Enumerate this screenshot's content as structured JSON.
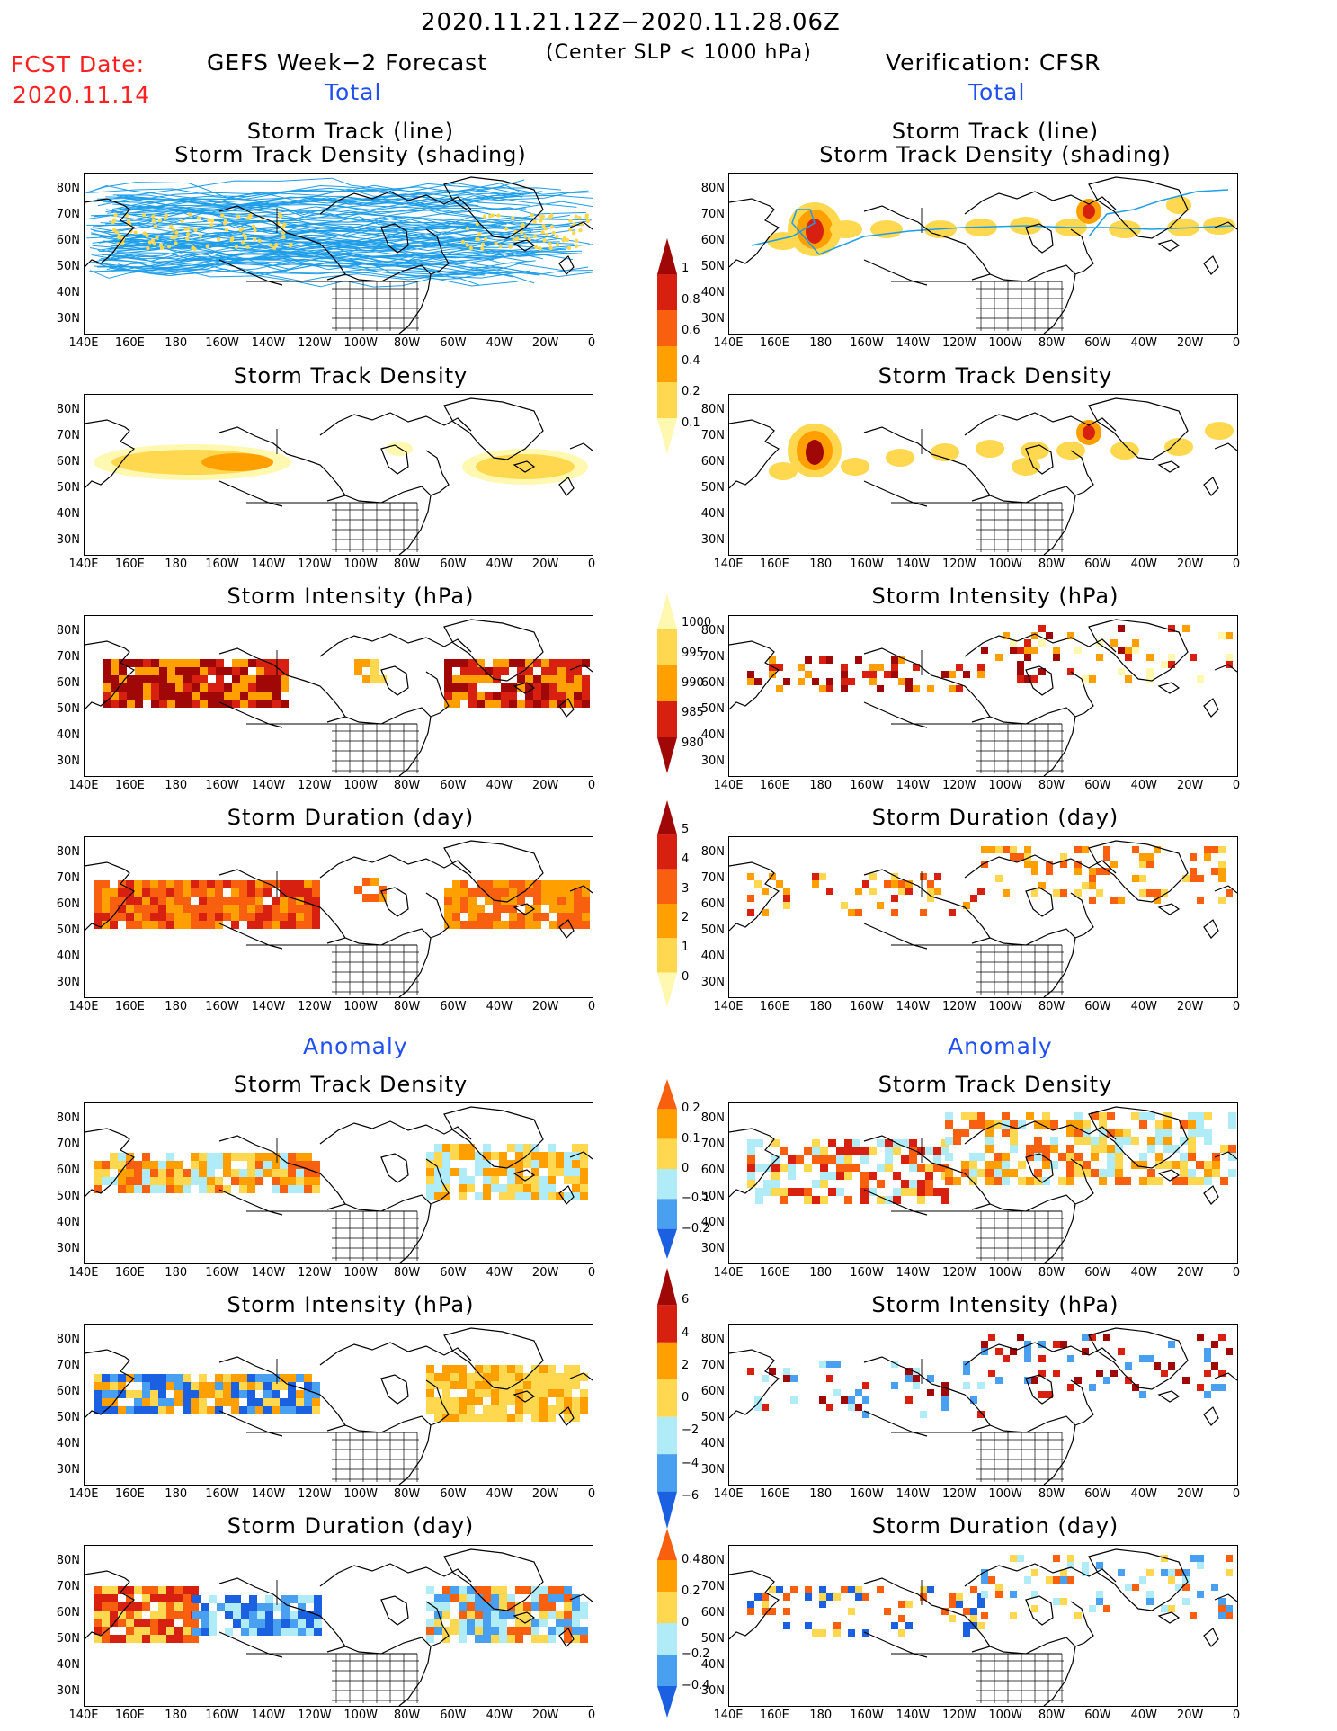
{
  "header": {
    "period": "2020.11.21.12Z−2020.11.28.06Z",
    "criterion": "(Center SLP < 1000 hPa)",
    "fcst_label": "FCST Date:",
    "fcst_date": "2020.11.14",
    "left_title": "GEFS Week−2 Forecast",
    "right_title": "Verification: CFSR",
    "total_label": "Total",
    "anomaly_label": "Anomaly"
  },
  "panel_titles": {
    "track_line": "Storm Track (line)",
    "track_shading": "Storm Track Density (shading)",
    "density": "Storm Track Density",
    "intensity": "Storm Intensity (hPa)",
    "duration": "Storm Duration (day)"
  },
  "axes": {
    "lon_ticks": [
      "140E",
      "160E",
      "180",
      "160W",
      "140W",
      "120W",
      "100W",
      "80W",
      "60W",
      "40W",
      "20W",
      "0"
    ],
    "lat_ticks": [
      "80N",
      "70N",
      "60N",
      "50N",
      "40N",
      "30N"
    ]
  },
  "colorbars": {
    "density_total": [
      "1",
      "0.8",
      "0.6",
      "0.4",
      "0.2",
      "0.1"
    ],
    "intensity_total": [
      "1000",
      "995",
      "990",
      "985",
      "980"
    ],
    "duration_total": [
      "5",
      "4",
      "3",
      "2",
      "1",
      "0"
    ],
    "density_anom": [
      "0.2",
      "0.1",
      "0",
      "−0.1",
      "−0.2"
    ],
    "intensity_anom": [
      "6",
      "4",
      "2",
      "0",
      "−2",
      "−4",
      "−6"
    ],
    "duration_anom": [
      "0.4",
      "0.2",
      "0",
      "−0.2",
      "−0.4"
    ]
  },
  "colors": {
    "track_line": "#1e9ee8",
    "yellow_light": "#fff8b0",
    "yellow": "#ffd850",
    "orange": "#ffa000",
    "orange_red": "#f86010",
    "red": "#d82010",
    "dark_red": "#a00808",
    "light_blue": "#b0ecf8",
    "blue": "#4aa0f0",
    "dark_blue": "#1a60e0"
  }
}
